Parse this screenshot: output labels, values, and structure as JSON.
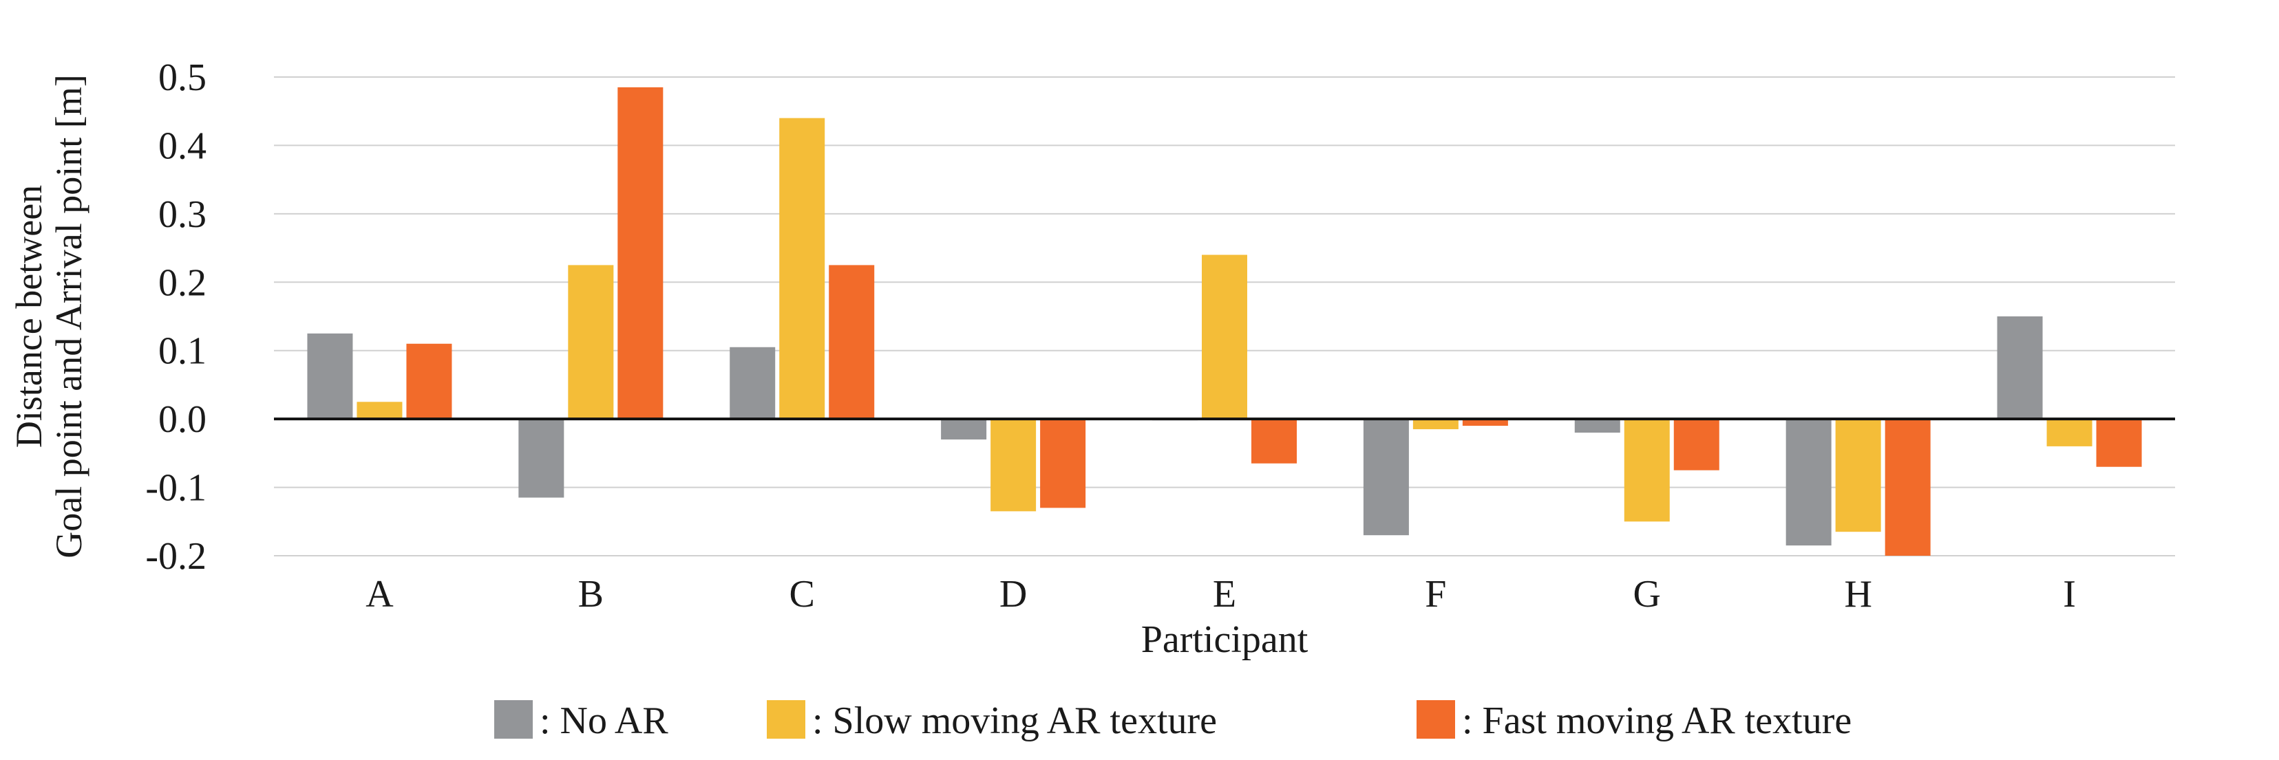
{
  "chart_data": {
    "type": "bar",
    "title": "",
    "xlabel": "Participant",
    "ylabel_lines": [
      "Distance between",
      "Goal point and Arrival point [m]"
    ],
    "categories": [
      "A",
      "B",
      "C",
      "D",
      "E",
      "F",
      "G",
      "H",
      "I"
    ],
    "ylim": [
      -0.2,
      0.5
    ],
    "yticks": [
      -0.2,
      -0.1,
      0.0,
      0.1,
      0.2,
      0.3,
      0.4,
      0.5
    ],
    "ytick_labels": [
      "-0.2",
      "-0.1",
      "0.0",
      "0.1",
      "0.2",
      "0.3",
      "0.4",
      "0.5"
    ],
    "grid": true,
    "legend_position": "bottom",
    "series": [
      {
        "name": "No AR",
        "legend_label": ": No AR",
        "color": "#939598",
        "values": [
          0.125,
          -0.115,
          0.105,
          -0.03,
          -0.002,
          -0.17,
          -0.02,
          -0.185,
          0.15
        ]
      },
      {
        "name": "Slow moving AR texture",
        "legend_label": ": Slow moving AR texture",
        "color": "#f4bd38",
        "values": [
          0.025,
          0.225,
          0.44,
          -0.135,
          0.24,
          -0.015,
          -0.15,
          -0.165,
          -0.04
        ]
      },
      {
        "name": "Fast moving AR texture",
        "legend_label": ": Fast moving AR texture",
        "color": "#f26b2a",
        "values": [
          0.11,
          0.485,
          0.225,
          -0.13,
          -0.065,
          -0.01,
          -0.075,
          -0.2,
          -0.07
        ]
      }
    ]
  }
}
